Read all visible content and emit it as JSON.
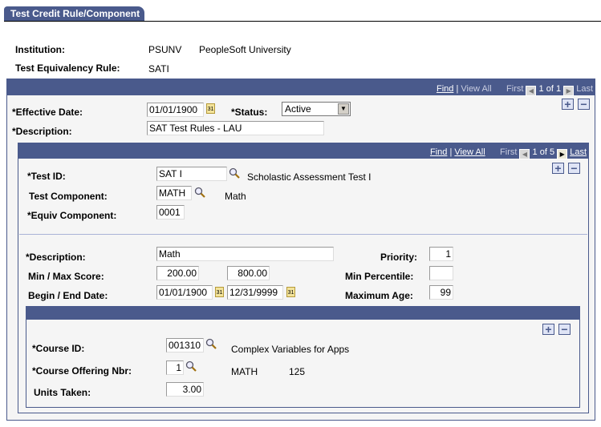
{
  "tab": {
    "label": "Test Credit Rule/Component"
  },
  "header": {
    "institution_label": "Institution:",
    "institution_code": "PSUNV",
    "institution_name": "PeopleSoft University",
    "rule_label": "Test Equivalency Rule:",
    "rule_value": "SATI"
  },
  "outer": {
    "nav": {
      "find": "Find",
      "sep": "|",
      "view_all": "View All",
      "first": "First",
      "count": "1 of 1",
      "last": "Last"
    },
    "effective_date_label": "*Effective Date:",
    "effective_date": "01/01/1900",
    "status_label": "*Status:",
    "status": "Active",
    "description_label": "*Description:",
    "description": "SAT Test Rules - LAU",
    "add": "+",
    "delete": "−"
  },
  "inner": {
    "nav": {
      "find": "Find",
      "sep": "|",
      "view_all": "View All",
      "first": "First",
      "count": "1 of 5",
      "last": "Last"
    },
    "add": "+",
    "delete": "−",
    "test_id_label": "*Test ID:",
    "test_id": "SAT I",
    "test_id_desc": "Scholastic Assessment Test I",
    "test_component_label": "Test Component:",
    "test_component": "MATH",
    "test_component_desc": "Math",
    "equiv_component_label": "*Equiv Component:",
    "equiv_component": "0001",
    "description_label": "*Description:",
    "description": "Math",
    "minmax_label": "Min / Max Score:",
    "min_score": "200.00",
    "max_score": "800.00",
    "dates_label": "Begin / End Date:",
    "begin_date": "01/01/1900",
    "end_date": "12/31/9999",
    "priority_label": "Priority:",
    "priority": "1",
    "min_pct_label": "Min Percentile:",
    "min_pct": "",
    "max_age_label": "Maximum Age:",
    "max_age": "99"
  },
  "course": {
    "add": "+",
    "delete": "−",
    "course_id_label": "*Course ID:",
    "course_id": "001310",
    "course_title": "Complex Variables for Apps",
    "offering_label": "*Course Offering Nbr:",
    "offering": "1",
    "subject": "MATH",
    "catalog": "125",
    "units_label": "Units Taken:",
    "units": "3.00"
  },
  "colors": {
    "header": "#4a5a8c",
    "panel_bg": "#f5f5f5"
  }
}
